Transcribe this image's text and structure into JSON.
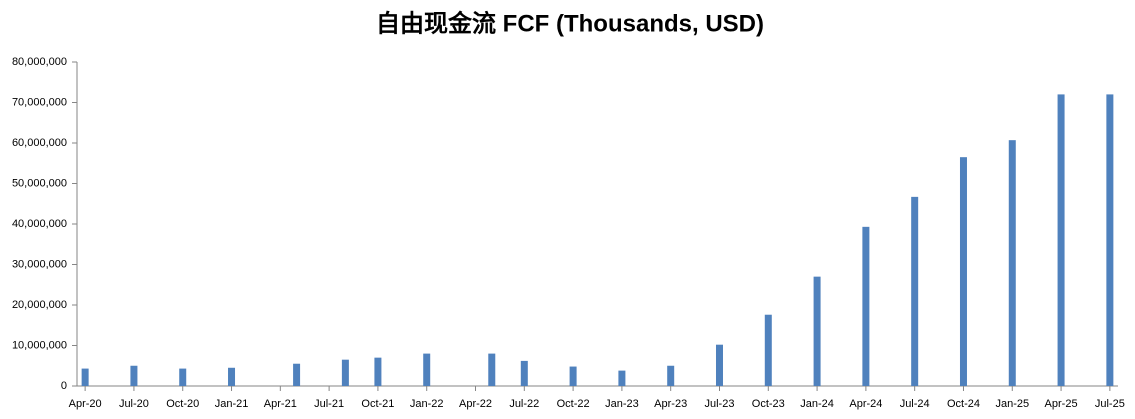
{
  "chart_data": {
    "type": "bar",
    "title": "自由现金流 FCF (Thousands, USD)",
    "categories": [
      "Apr-20",
      null,
      null,
      "Jul-20",
      null,
      null,
      "Oct-20",
      null,
      null,
      "Jan-21",
      null,
      null,
      "Apr-21",
      null,
      null,
      "Jul-21",
      null,
      null,
      "Oct-21",
      null,
      null,
      "Jan-22",
      null,
      null,
      "Apr-22",
      null,
      null,
      "Jul-22",
      null,
      null,
      "Oct-22",
      null,
      null,
      "Jan-23",
      null,
      null,
      "Apr-23",
      null,
      null,
      "Jul-23",
      null,
      null,
      "Oct-23",
      null,
      null,
      "Jan-24",
      null,
      null,
      "Apr-24",
      null,
      null,
      "Jul-24",
      null,
      null,
      "Oct-24",
      null,
      null,
      "Jan-25",
      null,
      null,
      "Apr-25",
      null,
      null,
      "Jul-25"
    ],
    "values": [
      4300000,
      null,
      null,
      5000000,
      null,
      null,
      4300000,
      null,
      null,
      4500000,
      null,
      null,
      null,
      5500000,
      null,
      null,
      6500000,
      null,
      7000000,
      null,
      null,
      8000000,
      null,
      null,
      null,
      8000000,
      null,
      6200000,
      null,
      null,
      4800000,
      null,
      null,
      3800000,
      null,
      null,
      5000000,
      null,
      null,
      10200000,
      null,
      null,
      17600000,
      null,
      null,
      27000000,
      null,
      null,
      39300000,
      null,
      null,
      46700000,
      null,
      null,
      56500000,
      null,
      null,
      60700000,
      null,
      null,
      72000000,
      null,
      null,
      72000000
    ],
    "color": "#4f81bd",
    "ylim": [
      0,
      80000000
    ],
    "yticks": [
      0,
      {
        "value": 10000000,
        "label": "10,000,000"
      },
      {
        "value": 20000000,
        "label": "20,000,000"
      },
      {
        "value": 30000000,
        "label": "30,000,000"
      },
      {
        "value": 40000000,
        "label": "40,000,000"
      },
      {
        "value": 50000000,
        "label": "50,000,000"
      },
      {
        "value": 60000000,
        "label": "60,000,000"
      },
      {
        "value": 70000000,
        "label": "70,000,000"
      },
      {
        "value": 80000000,
        "label": "80,000,000"
      }
    ],
    "grid": false
  }
}
